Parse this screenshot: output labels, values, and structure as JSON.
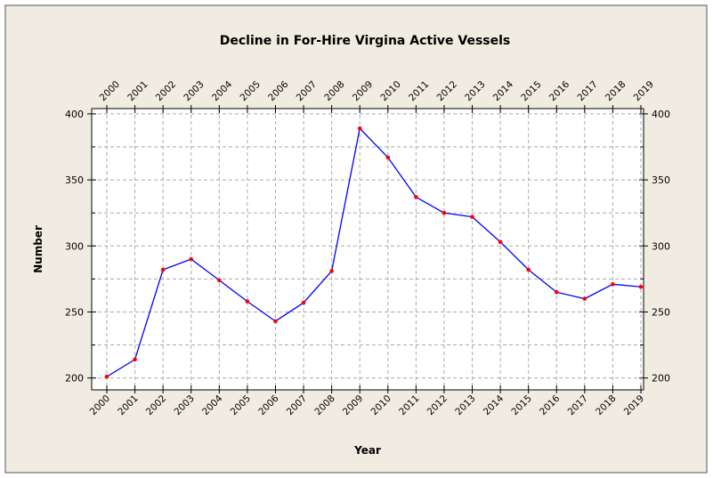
{
  "chart_data": {
    "type": "line",
    "title": "Decline in For-Hire Virgina Active Vessels",
    "x_label": "Year",
    "y_label": "Number",
    "categories": [
      "2000",
      "2001",
      "2002",
      "2003",
      "2004",
      "2005",
      "2006",
      "2007",
      "2008",
      "2009",
      "2010",
      "2011",
      "2012",
      "2013",
      "2014",
      "2015",
      "2016",
      "2017",
      "2018",
      "2019"
    ],
    "series": [
      {
        "name": "Active Vessels",
        "color": "#0000ff",
        "marker_color": "#ff0000",
        "values": [
          201,
          214,
          282,
          290,
          274,
          258,
          243,
          257,
          281,
          389,
          367,
          337,
          325,
          322,
          303,
          282,
          265,
          260,
          271,
          269
        ]
      }
    ],
    "ylim": [
      191,
      404
    ],
    "yticks": [
      200,
      250,
      300,
      350,
      400
    ],
    "minor_yticks": [
      225,
      275,
      325,
      375
    ],
    "grid": true
  }
}
